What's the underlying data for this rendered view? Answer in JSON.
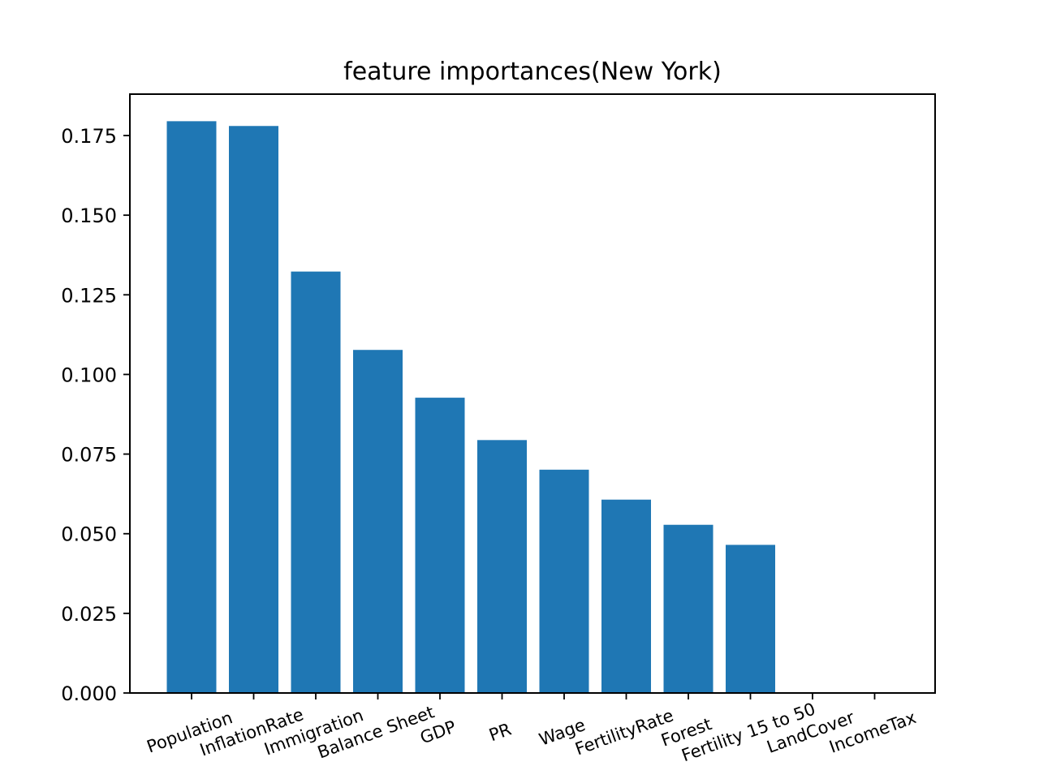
{
  "chart_data": {
    "type": "bar",
    "title": "feature importances(New York)",
    "xlabel": "",
    "ylabel": "",
    "categories": [
      "Population",
      "InflationRate",
      "Immigration",
      "Balance Sheet",
      "GDP",
      "PR",
      "Wage",
      "FertilityRate",
      "Forest",
      "Fertility 15 to 50",
      "LandCover",
      "IncomeTax"
    ],
    "values": [
      0.1795,
      0.178,
      0.1323,
      0.1077,
      0.0927,
      0.0794,
      0.0701,
      0.0607,
      0.0528,
      0.0465,
      0.0,
      0.0
    ],
    "ylim": [
      0,
      0.188
    ],
    "yticks": [
      "0.000",
      "0.025",
      "0.050",
      "0.075",
      "0.100",
      "0.125",
      "0.150",
      "0.175"
    ],
    "grid": false,
    "bar_color": "#1f77b4",
    "xtick_rotation_deg": -20
  }
}
